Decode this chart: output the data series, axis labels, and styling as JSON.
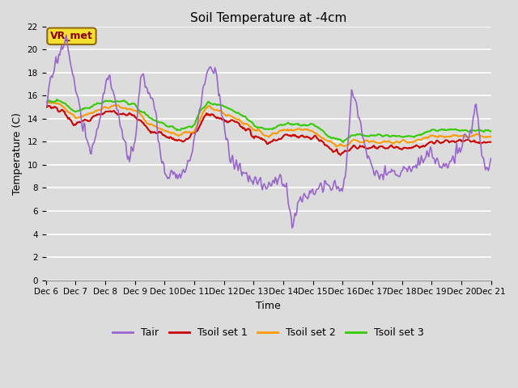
{
  "title": "Soil Temperature at -4cm",
  "xlabel": "Time",
  "ylabel": "Temperature (C)",
  "ylim": [
    0,
    22
  ],
  "yticks": [
    0,
    2,
    4,
    6,
    8,
    10,
    12,
    14,
    16,
    18,
    20,
    22
  ],
  "bg_color": "#dcdcdc",
  "plot_bg_color": "#dcdcdc",
  "grid_color": "white",
  "annotation_text": "VR_met",
  "series": {
    "Tair": {
      "color": "#9966cc",
      "lw": 1.2
    },
    "Tsoil_set1": {
      "color": "#cc0000",
      "lw": 1.5
    },
    "Tsoil_set2": {
      "color": "#ff9900",
      "lw": 1.5
    },
    "Tsoil_set3": {
      "color": "#33cc00",
      "lw": 1.5
    }
  },
  "legend": {
    "labels": [
      "Tair",
      "Tsoil set 1",
      "Tsoil set 2",
      "Tsoil set 3"
    ],
    "colors": [
      "#9966cc",
      "#cc0000",
      "#ff9900",
      "#33cc00"
    ]
  },
  "xtick_labels": [
    "Dec 6",
    "Dec 7",
    "Dec 8",
    "Dec 9",
    "Dec 10",
    "Dec 11",
    "Dec 12",
    "Dec 13",
    "Dec 14",
    "Dec 15",
    "Dec 16",
    "Dec 17",
    "Dec 18",
    "Dec 19",
    "Dec 20",
    "Dec 21"
  ],
  "n_points": 480
}
